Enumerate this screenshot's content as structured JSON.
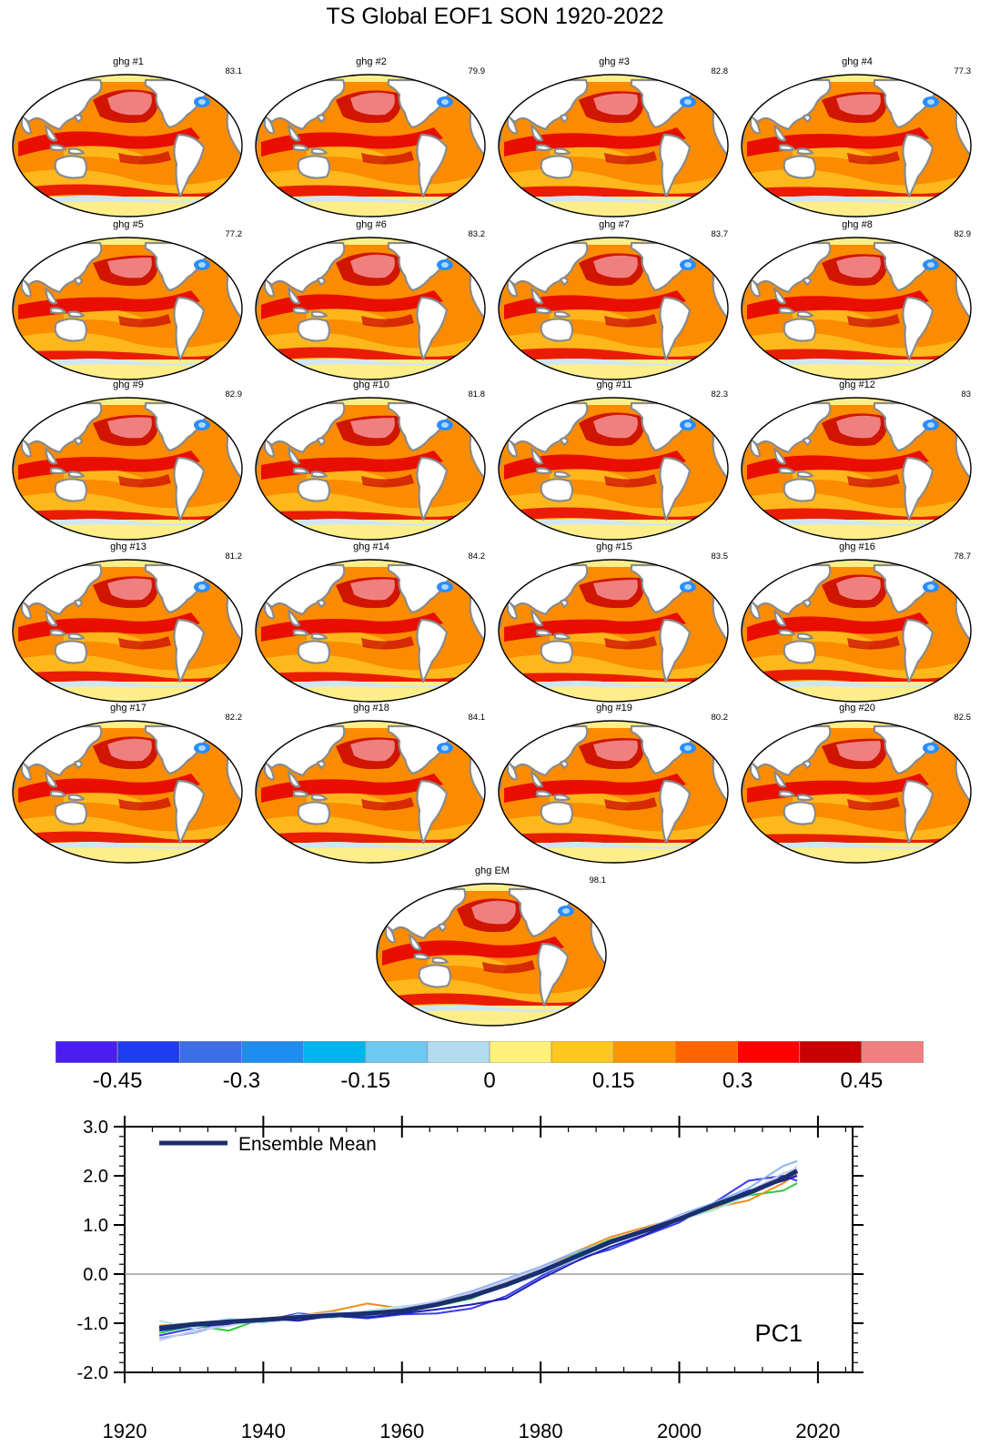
{
  "title": "TS Global EOF1 SON 1920-2022",
  "colors": {
    "land": "#ffffff",
    "coast": "#8a8a8a",
    "polar": "#fdee8a",
    "ocean_base": "#fb8c00",
    "ocean_red": "#e60000",
    "ocean_pink": "#f08080",
    "ocean_light": "#ffc020",
    "ocean_dark": "#c80000",
    "blob_outer": "#2b8cff",
    "blob_inner": "#a8d8ff"
  },
  "panels": [
    {
      "label": "ghg #1",
      "pct": "83.1"
    },
    {
      "label": "ghg #2",
      "pct": "79.9"
    },
    {
      "label": "ghg #3",
      "pct": "82.8"
    },
    {
      "label": "ghg #4",
      "pct": "77.3"
    },
    {
      "label": "ghg #5",
      "pct": "77.2"
    },
    {
      "label": "ghg #6",
      "pct": "83.2"
    },
    {
      "label": "ghg #7",
      "pct": "83.7"
    },
    {
      "label": "ghg #8",
      "pct": "82.9"
    },
    {
      "label": "ghg #9",
      "pct": "82.9"
    },
    {
      "label": "ghg #10",
      "pct": "81.8"
    },
    {
      "label": "ghg #11",
      "pct": "82.3"
    },
    {
      "label": "ghg #12",
      "pct": "83"
    },
    {
      "label": "ghg #13",
      "pct": "81.2"
    },
    {
      "label": "ghg #14",
      "pct": "84.2"
    },
    {
      "label": "ghg #15",
      "pct": "83.5"
    },
    {
      "label": "ghg #16",
      "pct": "78.7"
    },
    {
      "label": "ghg #17",
      "pct": "82.2"
    },
    {
      "label": "ghg #18",
      "pct": "84.1"
    },
    {
      "label": "ghg #19",
      "pct": "80.2"
    },
    {
      "label": "ghg #20",
      "pct": "82.5"
    },
    {
      "label": "ghg EM",
      "pct": "98.1"
    }
  ],
  "colorbar": {
    "colors": [
      "#4b1ef0",
      "#1e3cf0",
      "#3c6ee6",
      "#1e8cf0",
      "#00b4f0",
      "#6ec8f0",
      "#b4dcf0",
      "#fff07a",
      "#ffc81e",
      "#ff9600",
      "#ff6400",
      "#ff0000",
      "#c80000",
      "#f08080"
    ],
    "labels": [
      {
        "text": "-0.45",
        "index": 1
      },
      {
        "text": "-0.3",
        "index": 3
      },
      {
        "text": "-0.15",
        "index": 5
      },
      {
        "text": "0",
        "index": 7
      },
      {
        "text": "0.15",
        "index": 9
      },
      {
        "text": "0.3",
        "index": 11
      },
      {
        "text": "0.45",
        "index": 13
      }
    ]
  },
  "chart_data": {
    "type": "line",
    "title": "",
    "annotation": "PC1",
    "xlabel": "",
    "ylabel": "",
    "xlim": [
      1920,
      2025
    ],
    "ylim": [
      -2.0,
      3.0
    ],
    "xticks": [
      "1920",
      "1940",
      "1960",
      "1980",
      "2000",
      "2020"
    ],
    "yticks": [
      "-2.0",
      "-1.0",
      "0.0",
      "1.0",
      "2.0",
      "3.0"
    ],
    "legend": {
      "position": "top-left",
      "entries": [
        "Ensemble Mean"
      ]
    },
    "series": [
      {
        "name": "Ensemble Mean",
        "color": "#1a2f6e",
        "x": [
          1925,
          1930,
          1935,
          1940,
          1945,
          1950,
          1955,
          1960,
          1965,
          1970,
          1975,
          1980,
          1985,
          1990,
          1995,
          2000,
          2005,
          2010,
          2015,
          2017
        ],
        "y": [
          -1.1,
          -1.02,
          -0.97,
          -0.93,
          -0.88,
          -0.84,
          -0.8,
          -0.75,
          -0.62,
          -0.45,
          -0.22,
          0.05,
          0.35,
          0.65,
          0.88,
          1.12,
          1.4,
          1.65,
          1.95,
          2.1
        ]
      },
      {
        "name": "",
        "color": "#3c3cf0",
        "x": [
          1925,
          1930,
          1935,
          1940,
          1945,
          1950,
          1955,
          1960,
          1965,
          1970,
          1975,
          1980,
          1985,
          1990,
          1995,
          2000,
          2005,
          2010,
          2015,
          2017
        ],
        "y": [
          -1.25,
          -1.1,
          -1.0,
          -0.95,
          -0.8,
          -0.85,
          -0.9,
          -0.82,
          -0.8,
          -0.7,
          -0.45,
          -0.05,
          0.3,
          0.5,
          0.78,
          1.05,
          1.45,
          1.9,
          2.0,
          1.9
        ]
      },
      {
        "name": "",
        "color": "#2ecc40",
        "x": [
          1925,
          1930,
          1935,
          1940,
          1945,
          1950,
          1955,
          1960,
          1965,
          1970,
          1975,
          1980,
          1985,
          1990,
          1995,
          2000,
          2005,
          2010,
          2015,
          2017
        ],
        "y": [
          -1.2,
          -1.05,
          -1.15,
          -0.9,
          -0.9,
          -0.8,
          -0.85,
          -0.7,
          -0.65,
          -0.5,
          -0.2,
          0.1,
          0.4,
          0.7,
          0.9,
          1.1,
          1.35,
          1.6,
          1.7,
          1.85
        ]
      },
      {
        "name": "",
        "color": "#f08c1e",
        "x": [
          1925,
          1930,
          1935,
          1940,
          1945,
          1950,
          1955,
          1960,
          1965,
          1970,
          1975,
          1980,
          1985,
          1990,
          1995,
          2000,
          2005,
          2010,
          2015,
          2017
        ],
        "y": [
          -1.05,
          -1.0,
          -0.95,
          -0.9,
          -0.85,
          -0.75,
          -0.6,
          -0.7,
          -0.6,
          -0.4,
          -0.15,
          0.1,
          0.45,
          0.75,
          0.95,
          1.15,
          1.35,
          1.5,
          1.85,
          2.05
        ]
      },
      {
        "name": "",
        "color": "#8ab4f0",
        "x": [
          1925,
          1930,
          1935,
          1940,
          1945,
          1950,
          1955,
          1960,
          1965,
          1970,
          1975,
          1980,
          1985,
          1990,
          1995,
          2000,
          2005,
          2010,
          2015,
          2017
        ],
        "y": [
          -1.3,
          -1.2,
          -1.0,
          -0.98,
          -0.9,
          -0.85,
          -0.78,
          -0.72,
          -0.55,
          -0.35,
          -0.1,
          0.15,
          0.45,
          0.65,
          0.9,
          1.2,
          1.45,
          1.75,
          2.2,
          2.3
        ]
      },
      {
        "name": "",
        "color": "#b4e6e6",
        "x": [
          1925,
          1930,
          1935,
          1940,
          1945,
          1950,
          1955,
          1960,
          1965,
          1970,
          1975,
          1980,
          1985,
          1990,
          1995,
          2000,
          2005,
          2010,
          2015,
          2017
        ],
        "y": [
          -0.95,
          -1.1,
          -0.9,
          -1.0,
          -0.82,
          -0.9,
          -0.75,
          -0.65,
          -0.6,
          -0.4,
          -0.25,
          0.0,
          0.3,
          0.6,
          0.85,
          1.1,
          1.3,
          1.6,
          1.95,
          2.2
        ]
      },
      {
        "name": "",
        "color": "#1e1eb4",
        "x": [
          1925,
          1930,
          1935,
          1940,
          1945,
          1950,
          1955,
          1960,
          1965,
          1970,
          1975,
          1980,
          1985,
          1990,
          1995,
          2000,
          2005,
          2010,
          2015,
          2017
        ],
        "y": [
          -1.15,
          -1.05,
          -1.02,
          -0.9,
          -0.95,
          -0.85,
          -0.88,
          -0.8,
          -0.72,
          -0.62,
          -0.5,
          -0.1,
          0.25,
          0.55,
          0.8,
          1.1,
          1.4,
          1.7,
          1.9,
          2.0
        ]
      },
      {
        "name": "",
        "color": "#c8c8f0",
        "x": [
          1925,
          1930,
          1935,
          1940,
          1945,
          1950,
          1955,
          1960,
          1965,
          1970,
          1975,
          1980,
          1985,
          1990,
          1995,
          2000,
          2005,
          2010,
          2015,
          2017
        ],
        "y": [
          -1.35,
          -1.15,
          -1.05,
          -0.92,
          -0.85,
          -0.78,
          -0.82,
          -0.68,
          -0.55,
          -0.38,
          -0.15,
          0.12,
          0.38,
          0.68,
          0.92,
          1.18,
          1.4,
          1.68,
          2.05,
          2.15
        ]
      }
    ]
  }
}
